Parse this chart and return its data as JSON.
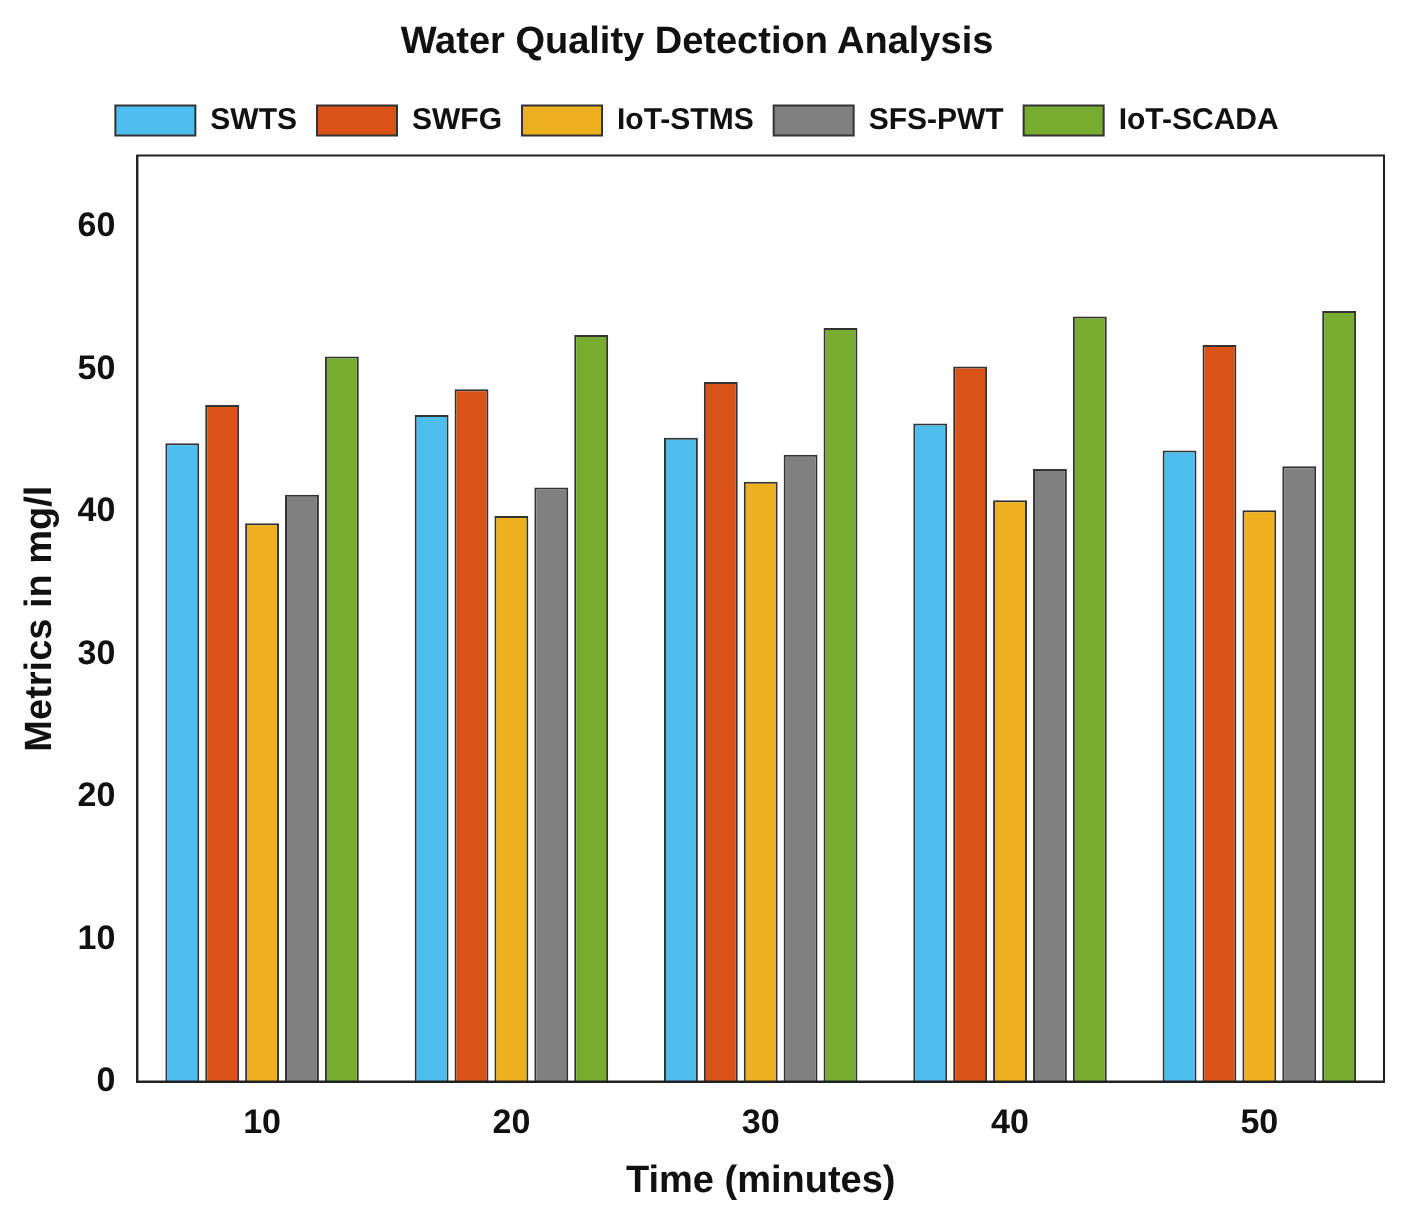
{
  "chart_data": {
    "type": "bar",
    "title": "Water Quality Detection Analysis",
    "xlabel": "Time (minutes)",
    "ylabel": "Metrics in mg/l",
    "categories": [
      "10",
      "20",
      "30",
      "40",
      "50"
    ],
    "series": [
      {
        "name": "SWTS",
        "color": "#4dbeee",
        "values": [
          44.8,
          46.8,
          45.2,
          46.2,
          44.3
        ]
      },
      {
        "name": "SWFG",
        "color": "#d95319",
        "values": [
          47.5,
          48.6,
          49.1,
          50.2,
          51.7
        ]
      },
      {
        "name": "IoT-STMS",
        "color": "#edb120",
        "values": [
          39.2,
          39.7,
          42.1,
          40.8,
          40.1
        ]
      },
      {
        "name": "SFS-PWT",
        "color": "#808080",
        "values": [
          41.2,
          41.7,
          44.0,
          43.0,
          43.2
        ]
      },
      {
        "name": "IoT-SCADA",
        "color": "#77ac30",
        "values": [
          50.9,
          52.4,
          52.9,
          53.7,
          54.1
        ]
      }
    ],
    "ylim": [
      0,
      65
    ],
    "yticks": [
      0,
      10,
      20,
      30,
      40,
      50,
      60
    ],
    "grid": false,
    "legend": "top"
  }
}
